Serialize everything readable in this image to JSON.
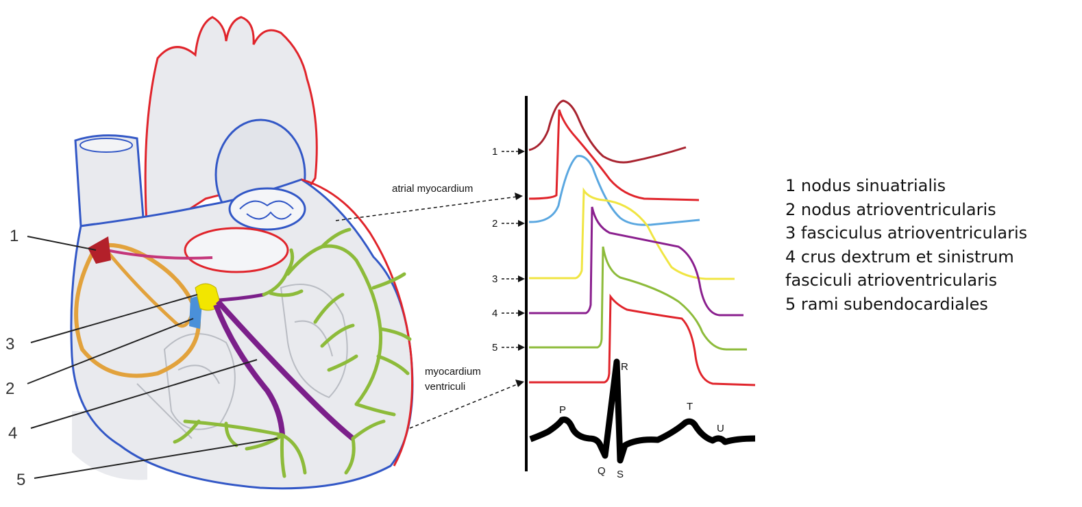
{
  "colors": {
    "aorta_outline": "#e0242b",
    "vein_outline": "#3257c6",
    "organ_fill": "#e9eaee",
    "sa_node": "#b3202a",
    "av_node": "#f2e600",
    "his_bundle": "#4a90d9",
    "bundle_branch": "#7b1f8a",
    "purkinje": "#8dbb3a",
    "internodal": "#e2a23c",
    "ecg": "#000000"
  },
  "heart_labels": [
    "1",
    "3",
    "2",
    "4",
    "5"
  ],
  "region_labels": {
    "atrial": "atrial myocardium",
    "ventricle_line1": "myocardium",
    "ventricle_line2": "ventriculi"
  },
  "trace_markers": [
    "1",
    "2",
    "3",
    "4",
    "5"
  ],
  "ecg_waves": [
    "P",
    "Q",
    "R",
    "S",
    "T",
    "U"
  ],
  "legend": [
    "1  nodus sinuatrialis",
    "2  nodus atrioventricularis",
    "3  fasciculus atrioventricularis",
    "4  crus dextrum et sinistrum",
    "fasciculi atrioventricularis",
    "5  rami subendocardiales"
  ]
}
